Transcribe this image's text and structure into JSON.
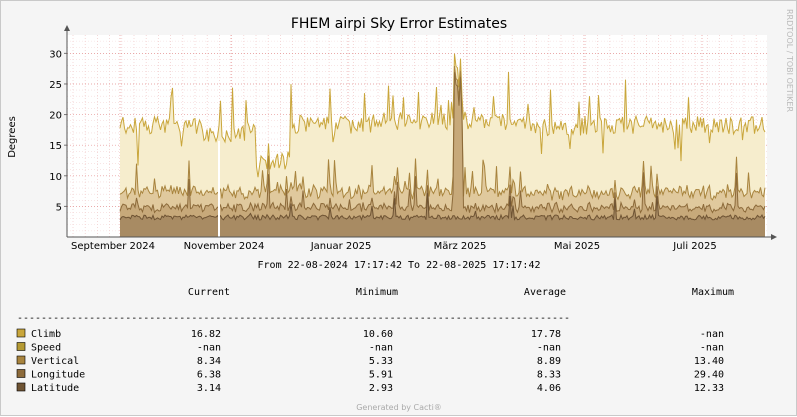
{
  "chart_data": {
    "type": "area",
    "title": "FHEM airpi Sky Error Estimates",
    "ylabel": "Degrees",
    "ylim": [
      0,
      33
    ],
    "yticks": [
      "5",
      "10",
      "15",
      "20",
      "25",
      "30"
    ],
    "xticks": [
      "September 2024",
      "November 2024",
      "Januar 2025",
      "März 2025",
      "Mai 2025",
      "Juli 2025"
    ],
    "x_range_label": "From 22-08-2024 17:17:42 To 22-08-2025 17:17:42",
    "watermark": "RRDTOOL / TOBI OETIKER",
    "grid": true,
    "legend_headers": {
      "current": "Current",
      "minimum": "Minimum",
      "average": "Average",
      "maximum": "Maximum"
    },
    "separator": "--------------------------------------------------------------------------------------------",
    "series": [
      {
        "name": "Climb",
        "color": "#c9a63b",
        "current": "16.82",
        "minimum": "10.60",
        "average": "17.78",
        "maximum": "-nan"
      },
      {
        "name": "Speed",
        "color": "#b59a34",
        "current": "-nan",
        "minimum": "-nan",
        "average": "-nan",
        "maximum": "-nan"
      },
      {
        "name": "Vertical",
        "color": "#a8843e",
        "current": "8.34",
        "minimum": "5.33",
        "average": "8.89",
        "maximum": "13.40"
      },
      {
        "name": "Longitude",
        "color": "#8c6a3a",
        "current": "6.38",
        "minimum": "5.91",
        "average": "8.33",
        "maximum": "29.40"
      },
      {
        "name": "Latitude",
        "color": "#6e5333",
        "current": "3.14",
        "minimum": "2.93",
        "average": "4.06",
        "maximum": "12.33"
      }
    ]
  },
  "footer": "Generated by Cacti®"
}
